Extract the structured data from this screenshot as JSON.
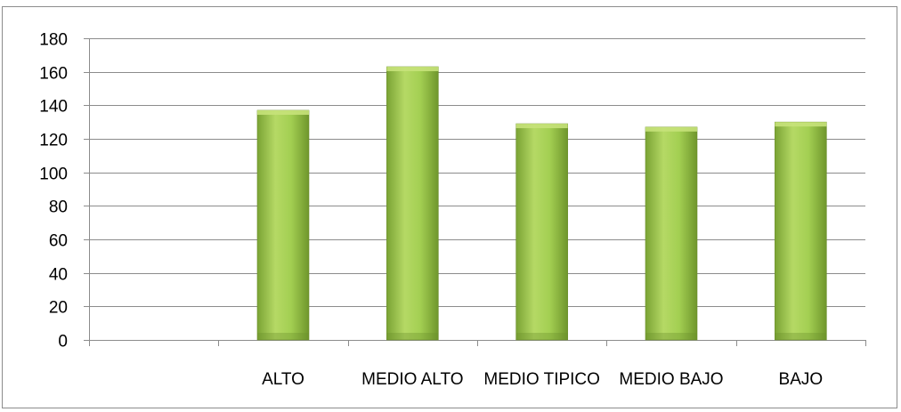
{
  "chart_data": {
    "type": "bar",
    "categories": [
      "",
      "ALTO",
      "MEDIO ALTO",
      "MEDIO TIPICO",
      "MEDIO BAJO",
      "BAJO"
    ],
    "values": [
      null,
      137,
      163,
      129,
      127,
      130
    ],
    "ylim": [
      0,
      180
    ],
    "yticks": [
      0,
      20,
      40,
      60,
      80,
      100,
      120,
      140,
      160,
      180
    ],
    "grid": true,
    "legend": "none",
    "colors": {
      "bar": "#92c043",
      "bar_light": "#c6e27a",
      "bar_dark": "#6b8e2a",
      "grid": "#8c8c8c",
      "frame": "#8c8c8c"
    }
  }
}
